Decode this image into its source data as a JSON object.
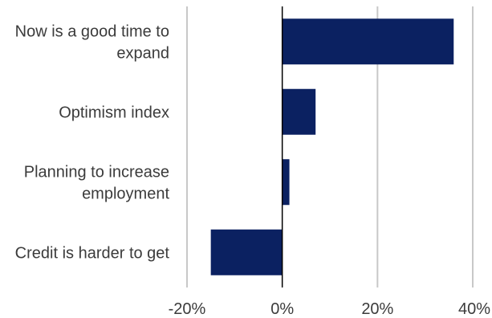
{
  "chart_data": {
    "type": "bar",
    "orientation": "horizontal",
    "categories": [
      [
        "Now is a good time to",
        "expand"
      ],
      [
        "Optimism index"
      ],
      [
        "Planning to increase",
        "employment"
      ],
      [
        "Credit is harder to get"
      ]
    ],
    "values": [
      36,
      7,
      1.5,
      -15
    ],
    "xlim": [
      -20,
      40
    ],
    "xticks": [
      -20,
      0,
      20,
      40
    ],
    "tick_labels": [
      "-20%",
      "0%",
      "20%",
      "40%"
    ],
    "grid": "vertical",
    "colors": {
      "bar": "#0b2161",
      "grid": "#c8c8c8",
      "zero_line": "#000000"
    }
  }
}
